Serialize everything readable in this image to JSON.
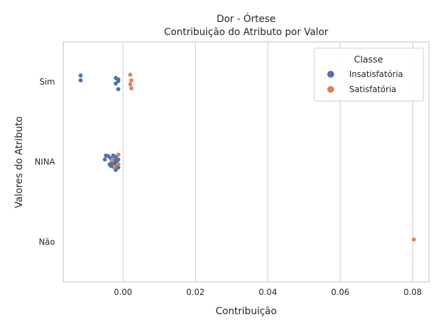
{
  "chart_data": {
    "type": "scatter",
    "title": "Dor - Órtese",
    "subtitle": "Contribuição do Atributo por Valor",
    "xlabel": "Contribuição",
    "ylabel": "Valores do Atributo",
    "xlim": [
      -0.0165,
      0.0845
    ],
    "x_ticks": [
      "0.00",
      "0.02",
      "0.04",
      "0.06",
      "0.08"
    ],
    "x_tick_values": [
      0.0,
      0.02,
      0.04,
      0.06,
      0.08
    ],
    "categories": [
      "Sim",
      "NINA",
      "Não"
    ],
    "grid": "vertical",
    "legend": {
      "title": "Classe",
      "placement": "top-right",
      "entries": [
        "Insatisfatória",
        "Satisfatória"
      ]
    },
    "series": [
      {
        "name": "Insatisfatória",
        "color": "#4c72b0",
        "points": [
          {
            "category": "Sim",
            "x": -0.0117,
            "jitter": -0.08
          },
          {
            "category": "Sim",
            "x": -0.0117,
            "jitter": -0.02
          },
          {
            "category": "Sim",
            "x": -0.002,
            "jitter": -0.05
          },
          {
            "category": "Sim",
            "x": -0.0013,
            "jitter": -0.03
          },
          {
            "category": "Sim",
            "x": -0.0013,
            "jitter": -0.01
          },
          {
            "category": "Sim",
            "x": -0.002,
            "jitter": 0.02
          },
          {
            "category": "Sim",
            "x": -0.0013,
            "jitter": 0.09
          },
          {
            "category": "NINA",
            "x": -0.0047,
            "jitter": -0.08
          },
          {
            "category": "NINA",
            "x": -0.004,
            "jitter": -0.07
          },
          {
            "category": "NINA",
            "x": -0.0033,
            "jitter": -0.04
          },
          {
            "category": "NINA",
            "x": -0.005,
            "jitter": -0.03
          },
          {
            "category": "NINA",
            "x": -0.0027,
            "jitter": -0.08
          },
          {
            "category": "NINA",
            "x": -0.002,
            "jitter": -0.06
          },
          {
            "category": "NINA",
            "x": -0.0013,
            "jitter": -0.03
          },
          {
            "category": "NINA",
            "x": -0.002,
            "jitter": 0.0
          },
          {
            "category": "NINA",
            "x": -0.0027,
            "jitter": 0.02
          },
          {
            "category": "NINA",
            "x": -0.0037,
            "jitter": 0.03
          },
          {
            "category": "NINA",
            "x": -0.0033,
            "jitter": 0.05
          },
          {
            "category": "NINA",
            "x": -0.0027,
            "jitter": 0.06
          },
          {
            "category": "NINA",
            "x": -0.0017,
            "jitter": 0.04
          },
          {
            "category": "NINA",
            "x": -0.0013,
            "jitter": 0.07
          },
          {
            "category": "NINA",
            "x": -0.002,
            "jitter": 0.1
          },
          {
            "category": "NINA",
            "x": -0.003,
            "jitter": 0.0
          },
          {
            "category": "NINA",
            "x": -0.0023,
            "jitter": -0.02
          },
          {
            "category": "NINA",
            "x": -0.0017,
            "jitter": 0.01
          }
        ]
      },
      {
        "name": "Satisfatória",
        "color": "#dd8452",
        "points": [
          {
            "category": "Sim",
            "x": 0.002,
            "jitter": -0.09
          },
          {
            "category": "Sim",
            "x": 0.0023,
            "jitter": -0.02
          },
          {
            "category": "Sim",
            "x": 0.002,
            "jitter": 0.03
          },
          {
            "category": "Sim",
            "x": 0.0023,
            "jitter": 0.08
          },
          {
            "category": "NINA",
            "x": -0.0013,
            "jitter": -0.09
          },
          {
            "category": "NINA",
            "x": -0.003,
            "jitter": -0.02
          },
          {
            "category": "NINA",
            "x": -0.0013,
            "jitter": 0.03
          },
          {
            "category": "NINA",
            "x": -0.0023,
            "jitter": 0.06
          },
          {
            "category": "Não",
            "x": 0.0803,
            "jitter": -0.03
          }
        ]
      }
    ]
  }
}
